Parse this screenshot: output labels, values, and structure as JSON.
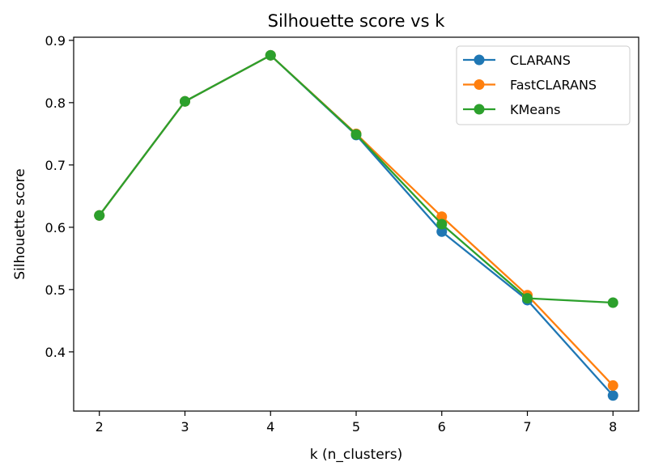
{
  "chart_data": {
    "type": "line",
    "title": "Silhouette score vs k",
    "xlabel": "k (n_clusters)",
    "ylabel": "Silhouette score",
    "x": [
      2,
      3,
      4,
      5,
      6,
      7,
      8
    ],
    "xticks": [
      "2",
      "3",
      "4",
      "5",
      "6",
      "7",
      "8"
    ],
    "yticks": [
      "0.4",
      "0.5",
      "0.6",
      "0.7",
      "0.8",
      "0.9"
    ],
    "xlim": [
      1.7,
      8.3
    ],
    "ylim": [
      0.305,
      0.905
    ],
    "grid": false,
    "legend_position": "top-right",
    "series": [
      {
        "name": "CLARANS",
        "color": "#1f77b4",
        "values": [
          0.619,
          0.802,
          0.876,
          0.748,
          0.593,
          0.483,
          0.33
        ]
      },
      {
        "name": "FastCLARANS",
        "color": "#ff7f0e",
        "values": [
          0.619,
          0.802,
          0.876,
          0.75,
          0.617,
          0.491,
          0.346
        ]
      },
      {
        "name": "KMeans",
        "color": "#2ca02c",
        "values": [
          0.619,
          0.802,
          0.876,
          0.749,
          0.605,
          0.486,
          0.479
        ]
      }
    ]
  }
}
